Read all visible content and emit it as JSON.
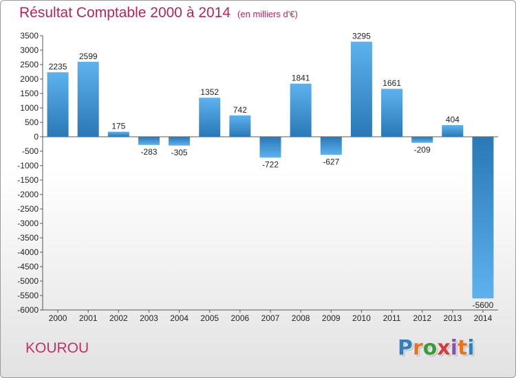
{
  "header": {
    "title": "Résultat Comptable 2000 à 2014",
    "unit": "(en milliers d'€)"
  },
  "footer": {
    "city": "KOUROU",
    "logo_text": "Proxiti",
    "logo_colors": [
      "#2f7fc1",
      "#e8731e",
      "#3a9b3a",
      "#d33c3c",
      "#8a4fb3",
      "#e8731e",
      "#2f7fc1"
    ]
  },
  "colors": {
    "title": "#b5245a",
    "bar_light": "#5aaeea",
    "bar_dark": "#2a7ab8"
  },
  "chart_data": {
    "type": "bar",
    "categories": [
      "2000",
      "2001",
      "2002",
      "2003",
      "2004",
      "2005",
      "2006",
      "2007",
      "2008",
      "2009",
      "2010",
      "2011",
      "2012",
      "2013",
      "2014"
    ],
    "values": [
      2235,
      2599,
      175,
      -283,
      -305,
      1352,
      742,
      -722,
      1841,
      -627,
      3295,
      1661,
      -209,
      404,
      -5600
    ],
    "ylim": [
      -6000,
      3500
    ],
    "yticks": [
      3500,
      3000,
      2500,
      2000,
      1500,
      1000,
      500,
      0,
      -500,
      -1000,
      -1500,
      -2000,
      -2500,
      -3000,
      -3500,
      -4000,
      -4500,
      -5000,
      -5500,
      -6000
    ],
    "grid": false
  }
}
